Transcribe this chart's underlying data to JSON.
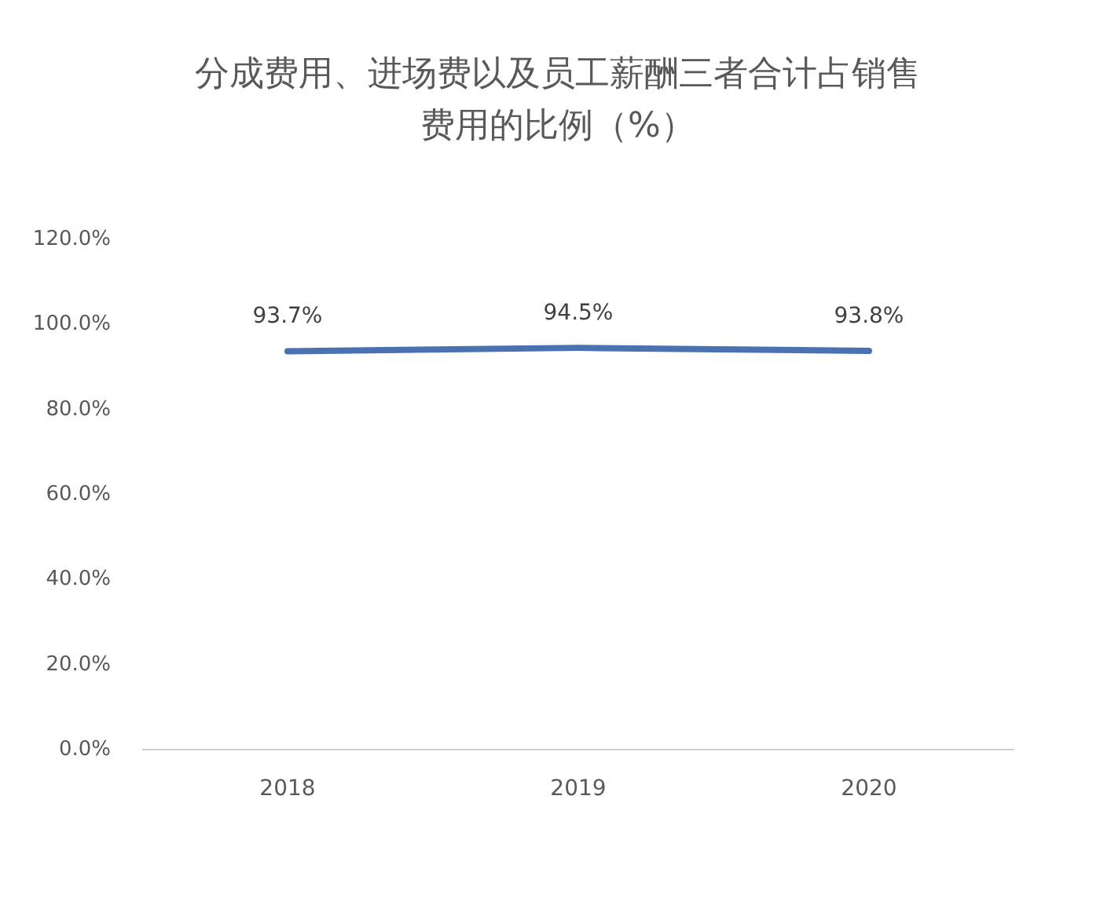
{
  "chart_data": {
    "type": "line",
    "title": "分成费用、进场费以及员工薪酬三者合计占销售费用的比例（%）",
    "categories": [
      "2018",
      "2019",
      "2020"
    ],
    "series": [
      {
        "color": "#4a72b0",
        "values": [
          93.7,
          94.5,
          93.8
        ],
        "value_labels": [
          "93.7%",
          "94.5%",
          "93.8%"
        ]
      }
    ],
    "ylim": [
      0,
      120
    ],
    "yticks": [
      {
        "value": 0,
        "label": "0.0%"
      },
      {
        "value": 20,
        "label": "20.0%"
      },
      {
        "value": 40,
        "label": "40.0%"
      },
      {
        "value": 60,
        "label": "60.0%"
      },
      {
        "value": 80,
        "label": "80.0%"
      },
      {
        "value": 100,
        "label": "100.0%"
      },
      {
        "value": 120,
        "label": "120.0%"
      }
    ],
    "grid": false,
    "marker": "none",
    "line_style": "solid"
  }
}
